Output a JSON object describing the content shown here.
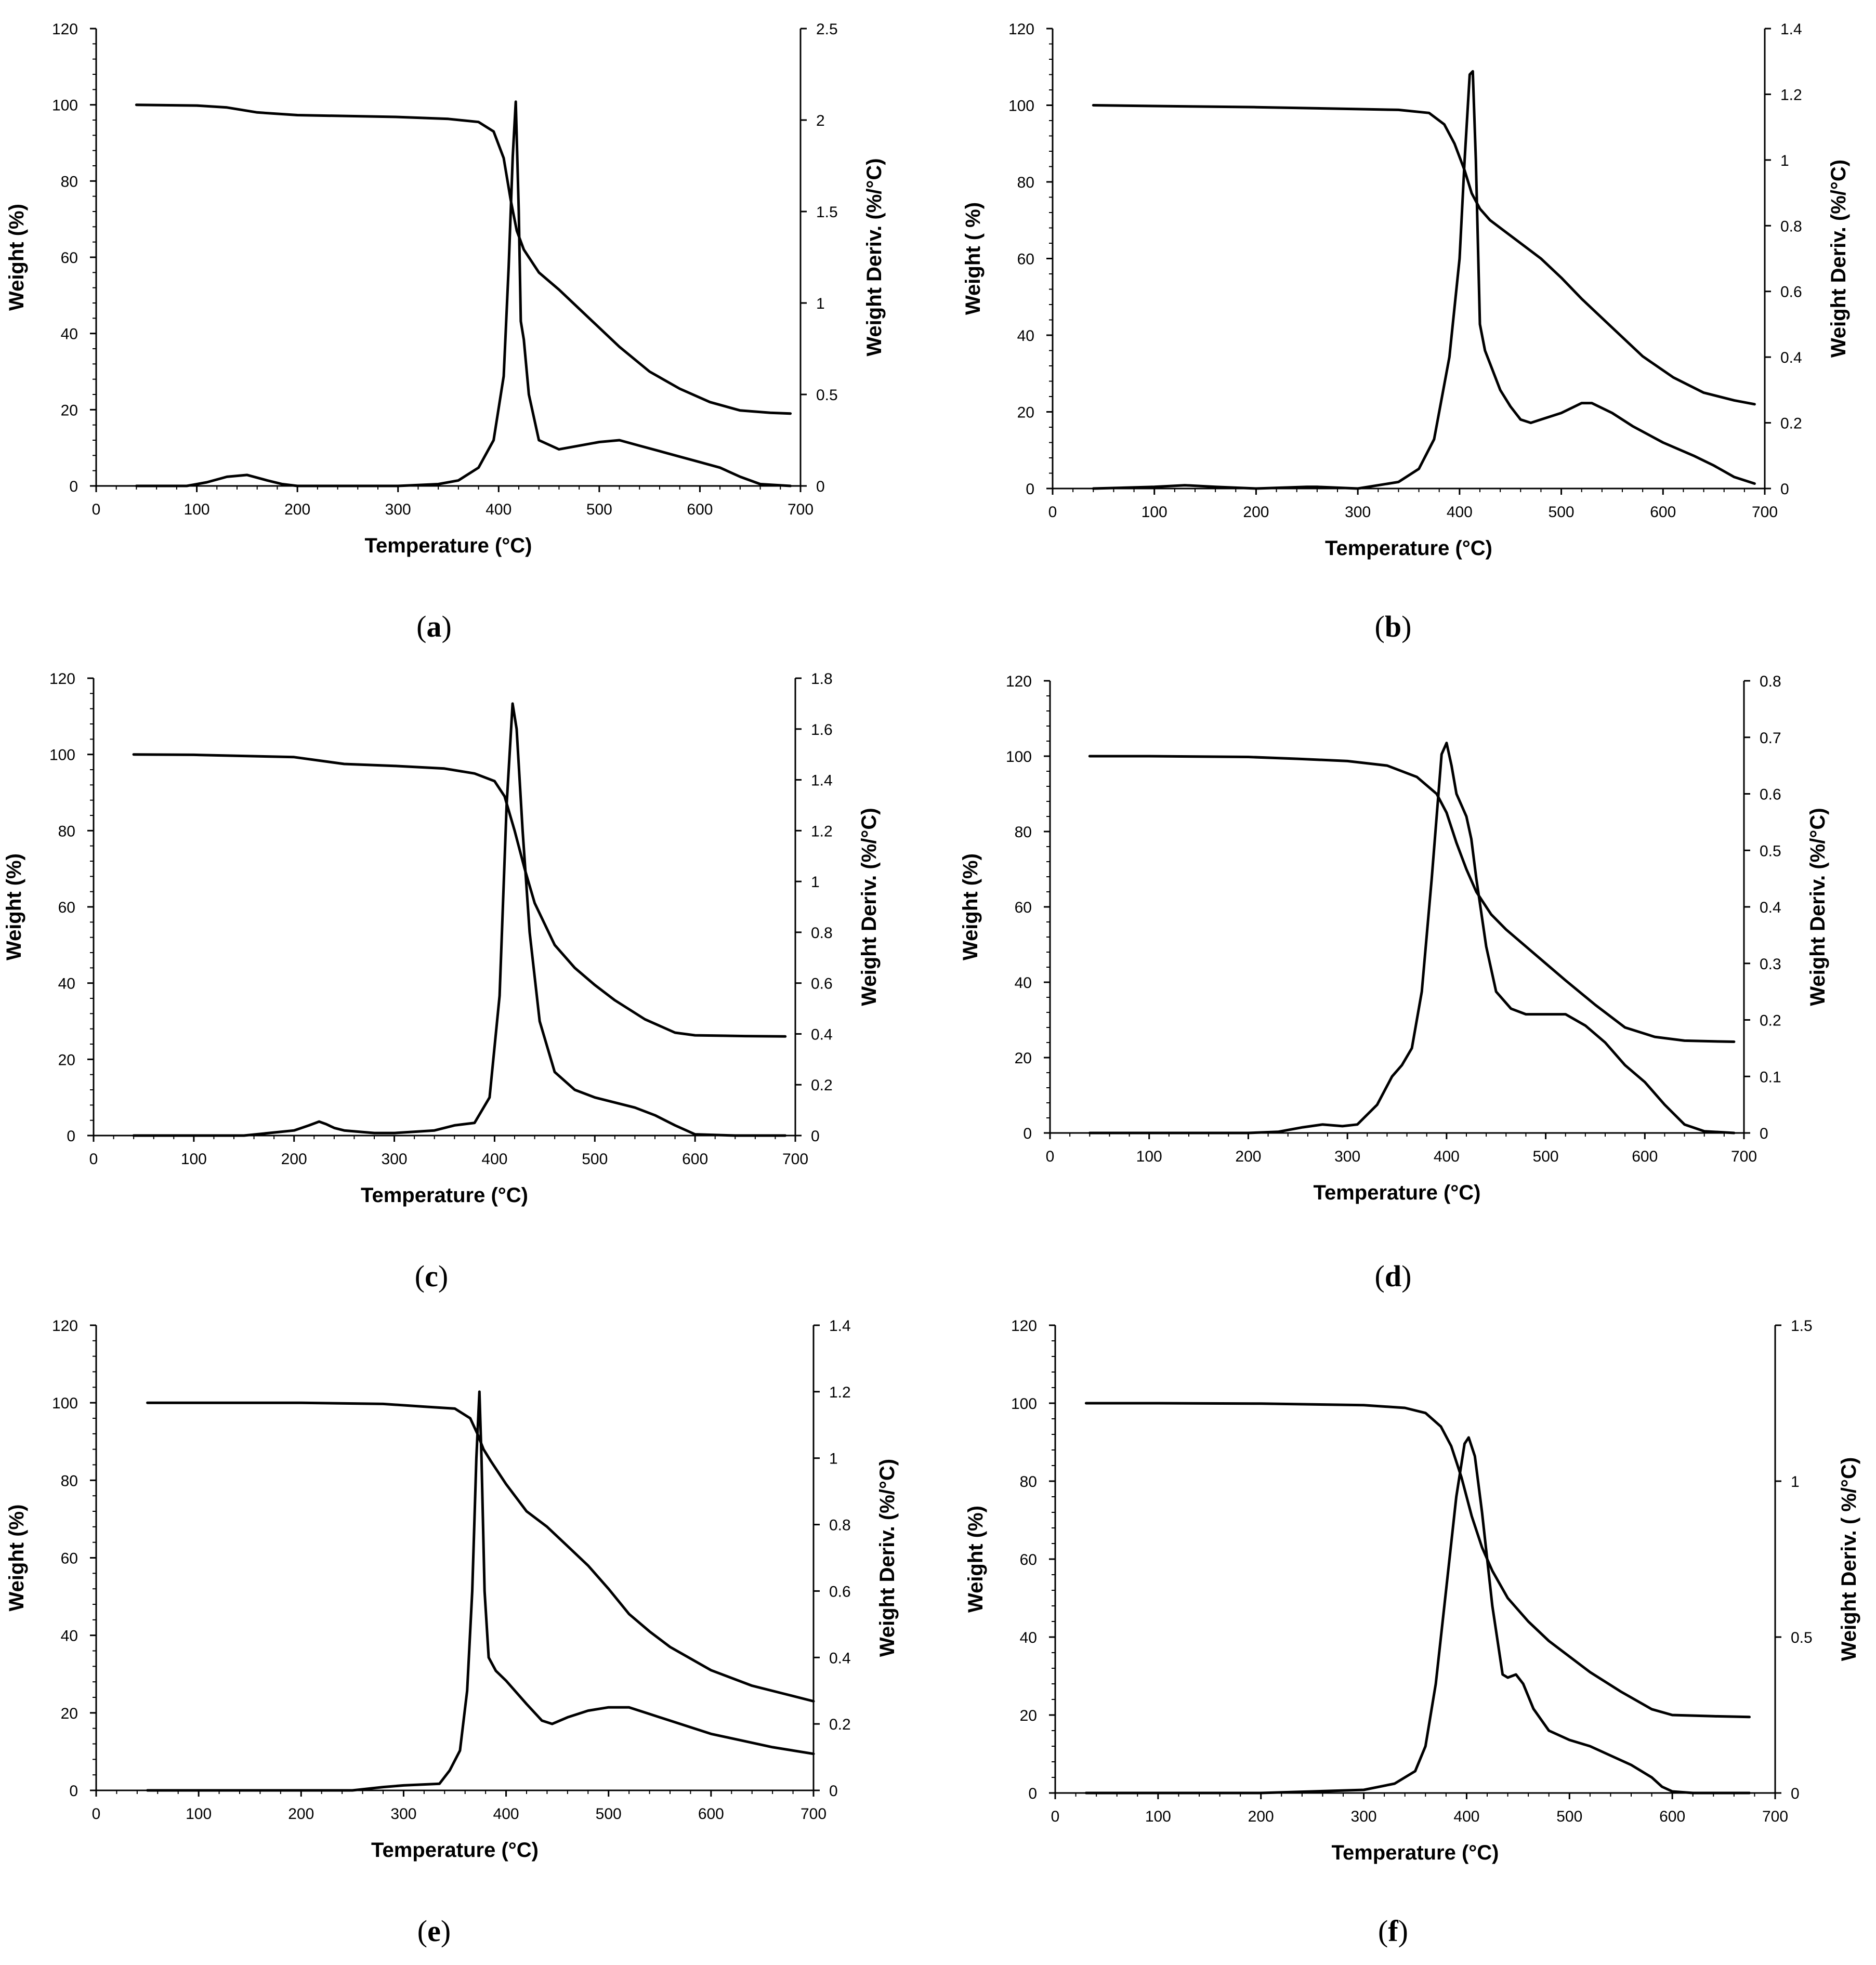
{
  "chart_data": [
    {
      "panel": "a",
      "type": "line",
      "xlabel": "Temperature (°C)",
      "ylabel": "Weight (%)",
      "y2label": "Weight Deriv. (%/°C)",
      "xlim": [
        0,
        700
      ],
      "ylim": [
        0,
        120
      ],
      "y2lim": [
        0,
        2.5
      ],
      "xticks": [
        0,
        100,
        200,
        300,
        400,
        500,
        600,
        700
      ],
      "yticks": [
        0,
        20,
        40,
        60,
        80,
        100,
        120
      ],
      "y2ticks": [
        0,
        0.5,
        1,
        1.5,
        2,
        2.5
      ],
      "series": [
        {
          "name": "Weight",
          "axis": "left",
          "x": [
            40,
            100,
            130,
            160,
            200,
            300,
            350,
            380,
            395,
            405,
            412,
            418,
            425,
            440,
            460,
            480,
            500,
            520,
            550,
            580,
            610,
            640,
            670,
            690
          ],
          "y": [
            100,
            99.8,
            99.3,
            98,
            97.3,
            96.8,
            96.3,
            95.5,
            93,
            86,
            75,
            67,
            62,
            56,
            51.5,
            46.5,
            41.5,
            36.5,
            30,
            25.5,
            22,
            19.8,
            19.2,
            19
          ]
        },
        {
          "name": "Weight Deriv.",
          "axis": "right",
          "x": [
            40,
            90,
            110,
            130,
            150,
            170,
            185,
            200,
            300,
            340,
            360,
            380,
            395,
            405,
            410,
            414,
            417,
            420,
            422,
            425,
            430,
            440,
            460,
            480,
            500,
            520,
            540,
            560,
            580,
            600,
            620,
            640,
            660,
            690
          ],
          "y": [
            0,
            0,
            0.02,
            0.05,
            0.06,
            0.03,
            0.01,
            0,
            0,
            0.01,
            0.03,
            0.1,
            0.25,
            0.6,
            1.2,
            1.8,
            2.1,
            1.5,
            0.9,
            0.8,
            0.5,
            0.25,
            0.2,
            0.22,
            0.24,
            0.25,
            0.22,
            0.19,
            0.16,
            0.13,
            0.1,
            0.05,
            0.01,
            0
          ]
        }
      ]
    },
    {
      "panel": "b",
      "type": "line",
      "xlabel": "Temperature (°C)",
      "ylabel": "Weight ( %)",
      "y2label": "Weight Deriv. (%/°C)",
      "xlim": [
        0,
        700
      ],
      "ylim": [
        0,
        120
      ],
      "y2lim": [
        0,
        1.4
      ],
      "xticks": [
        0,
        100,
        200,
        300,
        400,
        500,
        600,
        700
      ],
      "yticks": [
        0,
        20,
        40,
        60,
        80,
        100,
        120
      ],
      "y2ticks": [
        0,
        0.2,
        0.4,
        0.6,
        0.8,
        1,
        1.2,
        1.4
      ],
      "series": [
        {
          "name": "Weight",
          "axis": "left",
          "x": [
            40,
            100,
            200,
            300,
            340,
            370,
            385,
            395,
            405,
            412,
            420,
            430,
            445,
            460,
            480,
            500,
            520,
            550,
            580,
            610,
            640,
            670,
            690
          ],
          "y": [
            100,
            99.8,
            99.5,
            99,
            98.8,
            98,
            95,
            90,
            83,
            77,
            73,
            70,
            67,
            64,
            60,
            55,
            49.5,
            42,
            34.5,
            29,
            25,
            23,
            22
          ]
        },
        {
          "name": "Weight Deriv.",
          "axis": "right",
          "x": [
            40,
            100,
            130,
            160,
            200,
            250,
            260,
            300,
            340,
            360,
            375,
            390,
            400,
            405,
            410,
            413,
            416,
            420,
            425,
            430,
            440,
            450,
            460,
            470,
            480,
            500,
            520,
            530,
            550,
            570,
            600,
            630,
            650,
            670,
            690
          ],
          "y": [
            0,
            0.005,
            0.01,
            0.005,
            0,
            0.005,
            0.005,
            0,
            0.02,
            0.06,
            0.15,
            0.4,
            0.7,
            1.0,
            1.26,
            1.27,
            1.0,
            0.5,
            0.42,
            0.38,
            0.3,
            0.25,
            0.21,
            0.2,
            0.21,
            0.23,
            0.26,
            0.26,
            0.23,
            0.19,
            0.14,
            0.1,
            0.07,
            0.035,
            0.015
          ]
        }
      ]
    },
    {
      "panel": "c",
      "type": "line",
      "xlabel": "Temperature (°C)",
      "ylabel": "Weight (%)",
      "y2label": "Weight Deriv. (%/°C)",
      "xlim": [
        0,
        700
      ],
      "ylim": [
        0,
        120
      ],
      "y2lim": [
        0,
        1.8
      ],
      "xticks": [
        0,
        100,
        200,
        300,
        400,
        500,
        600,
        700
      ],
      "yticks": [
        0,
        20,
        40,
        60,
        80,
        100,
        120
      ],
      "y2ticks": [
        0,
        0.2,
        0.4,
        0.6,
        0.8,
        1,
        1.2,
        1.4,
        1.6,
        1.8
      ],
      "series": [
        {
          "name": "Weight",
          "axis": "left",
          "x": [
            40,
            100,
            200,
            250,
            300,
            350,
            380,
            400,
            410,
            420,
            430,
            440,
            460,
            480,
            500,
            520,
            550,
            580,
            600,
            650,
            690
          ],
          "y": [
            100,
            99.9,
            99.3,
            97.5,
            97,
            96.3,
            95,
            93,
            89,
            80,
            70,
            61,
            50,
            44,
            39.5,
            35.5,
            30.5,
            27,
            26.3,
            26.1,
            26
          ]
        },
        {
          "name": "Weight Deriv.",
          "axis": "right",
          "x": [
            40,
            150,
            200,
            215,
            225,
            232,
            240,
            250,
            280,
            300,
            340,
            360,
            380,
            395,
            405,
            412,
            418,
            422,
            428,
            435,
            445,
            460,
            480,
            500,
            520,
            540,
            560,
            580,
            600,
            640,
            690
          ],
          "y": [
            0,
            0,
            0.02,
            0.04,
            0.055,
            0.045,
            0.03,
            0.02,
            0.01,
            0.01,
            0.02,
            0.04,
            0.05,
            0.15,
            0.55,
            1.3,
            1.7,
            1.6,
            1.2,
            0.8,
            0.45,
            0.25,
            0.18,
            0.15,
            0.13,
            0.11,
            0.08,
            0.04,
            0.005,
            0,
            0
          ]
        }
      ]
    },
    {
      "panel": "d",
      "type": "line",
      "xlabel": "Temperature (°C)",
      "ylabel": "Weight  (%)",
      "y2label": "Weight Deriv. (%/°C)",
      "xlim": [
        0,
        700
      ],
      "ylim": [
        0,
        120
      ],
      "y2lim": [
        0,
        0.8
      ],
      "xticks": [
        0,
        100,
        200,
        300,
        400,
        500,
        600,
        700
      ],
      "yticks": [
        0,
        20,
        40,
        60,
        80,
        100,
        120
      ],
      "y2ticks": [
        0,
        0.1,
        0.2,
        0.3,
        0.4,
        0.5,
        0.6,
        0.7,
        0.8
      ],
      "series": [
        {
          "name": "Weight",
          "axis": "left",
          "x": [
            40,
            100,
            200,
            250,
            300,
            340,
            370,
            390,
            400,
            410,
            420,
            430,
            445,
            460,
            480,
            500,
            520,
            550,
            580,
            610,
            640,
            670,
            690
          ],
          "y": [
            100,
            100,
            99.8,
            99.3,
            98.7,
            97.5,
            94.5,
            90,
            85,
            77,
            70,
            64,
            58,
            54,
            49.5,
            45,
            40.5,
            34,
            28,
            25.5,
            24.5,
            24.3,
            24.2
          ]
        },
        {
          "name": "Weight Deriv.",
          "axis": "right",
          "x": [
            40,
            200,
            230,
            255,
            275,
            295,
            310,
            330,
            345,
            355,
            365,
            375,
            385,
            395,
            400,
            405,
            410,
            415,
            420,
            425,
            430,
            440,
            450,
            465,
            480,
            500,
            520,
            540,
            560,
            580,
            600,
            620,
            640,
            660,
            690
          ],
          "y": [
            0,
            0,
            0.002,
            0.01,
            0.015,
            0.012,
            0.015,
            0.05,
            0.1,
            0.12,
            0.15,
            0.25,
            0.45,
            0.67,
            0.69,
            0.65,
            0.6,
            0.58,
            0.56,
            0.52,
            0.45,
            0.33,
            0.25,
            0.22,
            0.21,
            0.21,
            0.21,
            0.19,
            0.16,
            0.12,
            0.09,
            0.05,
            0.015,
            0.003,
            0
          ]
        }
      ]
    },
    {
      "panel": "e",
      "type": "line",
      "xlabel": "Temperature (°C)",
      "ylabel": "Weight (%)",
      "y2label": "Weight Deriv.  (%/°C)",
      "xlim": [
        0,
        700
      ],
      "ylim": [
        0,
        120
      ],
      "y2lim": [
        0,
        1.4
      ],
      "xticks": [
        0,
        100,
        200,
        300,
        400,
        500,
        600,
        700
      ],
      "yticks": [
        0,
        20,
        40,
        60,
        80,
        100,
        120
      ],
      "y2ticks": [
        0,
        0.2,
        0.4,
        0.6,
        0.8,
        1,
        1.2,
        1.4
      ],
      "series": [
        {
          "name": "Weight",
          "axis": "left",
          "x": [
            50,
            100,
            200,
            280,
            320,
            350,
            365,
            372,
            378,
            385,
            400,
            420,
            440,
            460,
            480,
            500,
            520,
            540,
            560,
            600,
            640,
            670,
            700
          ],
          "y": [
            100,
            100,
            100,
            99.7,
            99,
            98.5,
            96,
            92,
            88,
            85,
            79,
            72,
            68,
            63,
            58,
            52,
            45.5,
            41,
            37,
            31,
            27,
            25,
            23
          ]
        },
        {
          "name": "Weight Deriv.",
          "axis": "right",
          "x": [
            50,
            200,
            250,
            280,
            300,
            335,
            345,
            355,
            362,
            367,
            371,
            374,
            376,
            379,
            383,
            390,
            400,
            420,
            435,
            445,
            460,
            480,
            500,
            520,
            540,
            560,
            580,
            600,
            630,
            660,
            700
          ],
          "y": [
            0,
            0,
            0,
            0.01,
            0.015,
            0.02,
            0.06,
            0.12,
            0.3,
            0.6,
            1.0,
            1.2,
            1.0,
            0.6,
            0.4,
            0.36,
            0.33,
            0.26,
            0.21,
            0.2,
            0.22,
            0.24,
            0.25,
            0.25,
            0.23,
            0.21,
            0.19,
            0.17,
            0.15,
            0.13,
            0.11
          ]
        }
      ]
    },
    {
      "panel": "f",
      "type": "line",
      "xlabel": "Temperature (°C)",
      "ylabel": "Weight  (%)",
      "y2label": "Weight Deriv. ( %/°C)",
      "xlim": [
        0,
        700
      ],
      "ylim": [
        0,
        120
      ],
      "y2lim": [
        0,
        1.5
      ],
      "xticks": [
        0,
        100,
        200,
        300,
        400,
        500,
        600,
        700
      ],
      "yticks": [
        0,
        20,
        40,
        60,
        80,
        100,
        120
      ],
      "y2ticks": [
        0,
        0.5,
        1,
        1.5
      ],
      "series": [
        {
          "name": "Weight",
          "axis": "left",
          "x": [
            30,
            100,
            200,
            300,
            340,
            360,
            375,
            385,
            395,
            405,
            415,
            425,
            440,
            460,
            480,
            500,
            520,
            550,
            580,
            600,
            640,
            675
          ],
          "y": [
            100,
            100,
            99.9,
            99.5,
            98.8,
            97.5,
            94,
            89,
            81,
            71,
            63,
            57,
            50,
            44,
            39,
            35,
            31,
            26,
            21.5,
            20,
            19.7,
            19.5
          ]
        },
        {
          "name": "Weight Deriv.",
          "axis": "right",
          "x": [
            30,
            200,
            250,
            300,
            330,
            350,
            360,
            370,
            380,
            390,
            398,
            402,
            408,
            415,
            425,
            435,
            440,
            448,
            455,
            465,
            480,
            500,
            520,
            540,
            560,
            580,
            590,
            600,
            620,
            675
          ],
          "y": [
            0,
            0,
            0.005,
            0.01,
            0.03,
            0.07,
            0.15,
            0.35,
            0.65,
            0.95,
            1.12,
            1.14,
            1.08,
            0.9,
            0.6,
            0.38,
            0.37,
            0.38,
            0.35,
            0.27,
            0.2,
            0.17,
            0.15,
            0.12,
            0.09,
            0.05,
            0.02,
            0.005,
            0,
            0
          ]
        }
      ]
    }
  ],
  "panel_labels": [
    "(a)",
    "(b)",
    "(c)",
    "(d)",
    "(e)",
    "(f)"
  ]
}
